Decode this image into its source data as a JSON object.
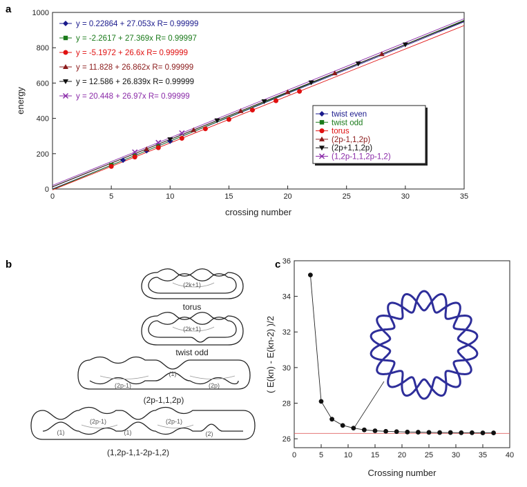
{
  "panels": {
    "a": "a",
    "b": "b",
    "c": "c"
  },
  "chart_data": [
    {
      "type": "scatter",
      "panel": "a",
      "xlabel": "crossing number",
      "ylabel": "energy",
      "xlim": [
        0,
        35
      ],
      "ylim": [
        0,
        1000
      ],
      "xticks": [
        0,
        5,
        10,
        15,
        20,
        25,
        30,
        35
      ],
      "yticks": [
        0,
        200,
        400,
        600,
        800,
        1000
      ],
      "grid": false,
      "legend_position": "center-right",
      "series": [
        {
          "name": "twist even",
          "color": "#1a1a8c",
          "marker": "diamond",
          "equation": "y = 0.22864 + 27.053x   R= 0.99999",
          "intercept": 0.22864,
          "slope": 27.053,
          "x": [
            6,
            8,
            10
          ],
          "y": [
            163,
            217,
            271
          ]
        },
        {
          "name": "twist odd",
          "color": "#1a7a1a",
          "marker": "square",
          "equation": "y = -2.2617 + 27.369x   R= 0.99997",
          "intercept": -2.2617,
          "slope": 27.369,
          "x": [
            5,
            7,
            9
          ],
          "y": [
            135,
            189,
            244
          ]
        },
        {
          "name": "torus",
          "color": "#e01010",
          "marker": "circle",
          "equation": "y = -5.1972 + 26.6x   R= 0.99999",
          "intercept": -5.1972,
          "slope": 26.6,
          "x": [
            5,
            7,
            9,
            11,
            13,
            15,
            17,
            19,
            21
          ],
          "y": [
            128,
            181,
            234,
            287,
            341,
            394,
            447,
            500,
            553
          ]
        },
        {
          "name": "(2p-1,1,2p)",
          "color": "#8b1a1a",
          "marker": "triangle",
          "equation": "y = 11.828 + 26.862x   R= 0.99999",
          "intercept": 11.828,
          "slope": 26.862,
          "x": [
            8,
            12,
            16,
            20,
            24,
            28
          ],
          "y": [
            226,
            334,
            442,
            549,
            656,
            764
          ]
        },
        {
          "name": "(2p+1,1,2p)",
          "color": "#111111",
          "marker": "triangle-down",
          "equation": "y = 12.586 + 26.839x   R= 0.99999",
          "intercept": 12.586,
          "slope": 26.839,
          "x": [
            10,
            14,
            18,
            22,
            26,
            30
          ],
          "y": [
            281,
            388,
            496,
            603,
            710,
            818
          ]
        },
        {
          "name": "(1,2p-1,1,2p-1,2)",
          "color": "#8a2aa8",
          "marker": "x",
          "equation": "y = 20.448 + 26.97x   R= 0.99999",
          "intercept": 20.448,
          "slope": 26.97,
          "x": [
            7,
            9,
            11
          ],
          "y": [
            209,
            263,
            317
          ]
        }
      ]
    },
    {
      "type": "line",
      "panel": "c",
      "xlabel": "Crossing number",
      "ylabel": "( E(kn) - E(kn-2) )/2",
      "xlim": [
        0,
        40
      ],
      "ylim": [
        25.5,
        36
      ],
      "xticks": [
        0,
        5,
        10,
        15,
        20,
        25,
        30,
        35,
        40
      ],
      "yticks": [
        26,
        28,
        30,
        32,
        34,
        36
      ],
      "grid": false,
      "reference_line": 26.3,
      "x": [
        3,
        5,
        7,
        9,
        11,
        13,
        15,
        17,
        19,
        21,
        23,
        25,
        27,
        29,
        31,
        33,
        35,
        37
      ],
      "y": [
        35.2,
        28.1,
        27.1,
        26.75,
        26.6,
        26.5,
        26.45,
        26.42,
        26.4,
        26.38,
        26.37,
        26.36,
        26.35,
        26.35,
        26.34,
        26.34,
        26.33,
        26.33
      ]
    }
  ],
  "knot_labels": {
    "torus": "torus",
    "torus_sub": "(2k+1)",
    "twist_odd": "twist odd",
    "twist_odd_sub": "(2k+1)",
    "family1": "(2p-1,1,2p)",
    "family1_sub_a": "(2p-1)",
    "family1_sub_b": "(1)",
    "family1_sub_c": "(2p)",
    "family2": "(1,2p-1,1-2p-1,2)",
    "family2_sub_a": "(1)",
    "family2_sub_b": "(2p-1)",
    "family2_sub_c": "(1)",
    "family2_sub_d": "(2p-1)",
    "family2_sub_e": "(2)"
  },
  "colors": {
    "axis": "#222222",
    "knot_stroke": "#222222",
    "inset_knot": "#2e2e9a",
    "reference_line": "#e06060"
  }
}
